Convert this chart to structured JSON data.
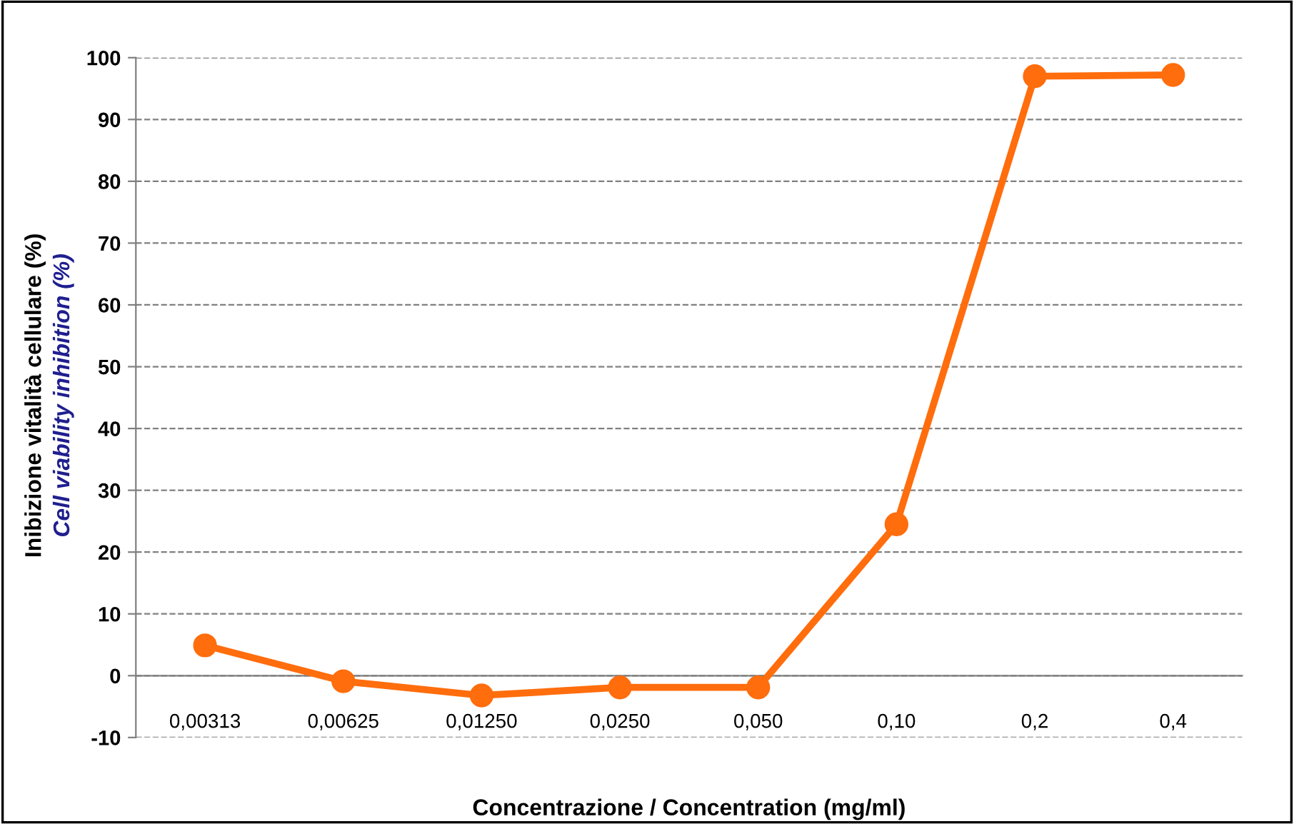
{
  "chart_data": {
    "type": "line",
    "xlabel": "Concentrazione / Concentration (mg/ml)",
    "ylabel": "Inibizione vitalità cellulare (%)\nCell viability inhibition (%)",
    "categories": [
      "0,00313",
      "0,00625",
      "0,01250",
      "0,0250",
      "0,050",
      "0,10",
      "0,2",
      "0,4"
    ],
    "series": [
      {
        "color": "#ff6d0d",
        "values": [
          4.9,
          -0.9,
          -3.2,
          -1.9,
          -1.9,
          24.5,
          97.0,
          97.2
        ]
      }
    ],
    "ylim": [
      -10,
      100
    ],
    "yticks": [
      -10,
      0,
      10,
      20,
      30,
      40,
      50,
      60,
      70,
      80,
      90,
      100
    ],
    "grid": "y",
    "marker": "circle",
    "line_style": "solid",
    "legend": false
  }
}
